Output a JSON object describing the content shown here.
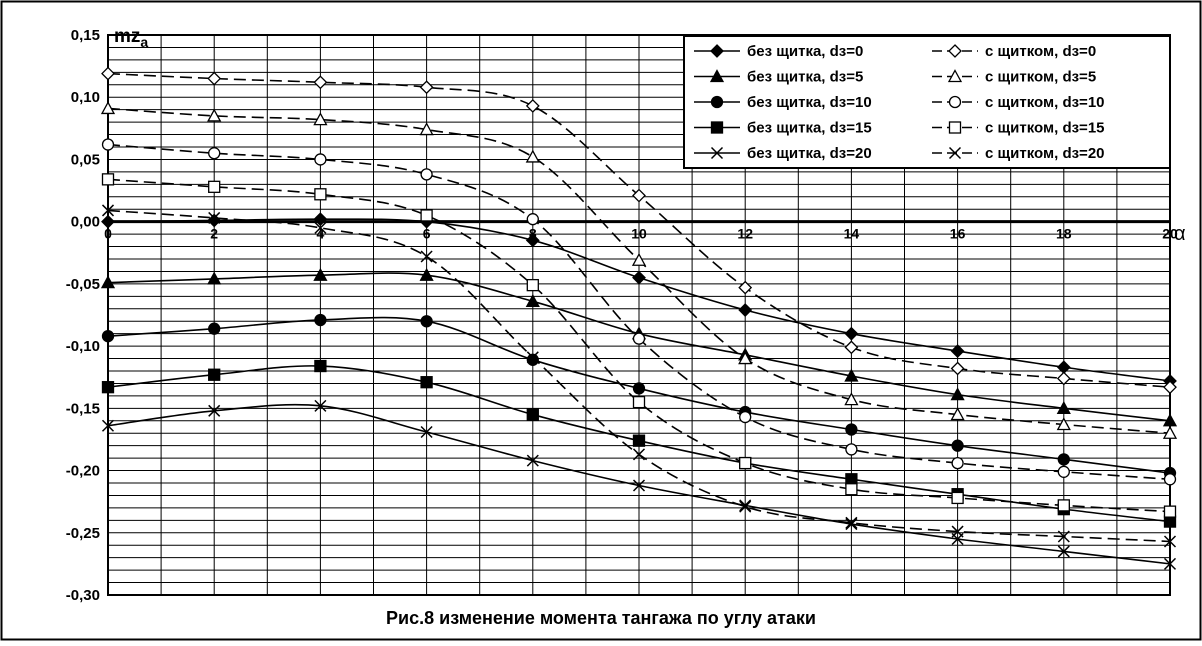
{
  "chart_data": {
    "type": "line",
    "title": "Рис.8 изменение момента тангажа по углу атаки",
    "xlabel": "α",
    "ylabel": "mz",
    "ylabel_sub": "a",
    "xlim": [
      0,
      20
    ],
    "ylim": [
      -0.3,
      0.15
    ],
    "x_ticks": [
      "0",
      "2",
      "4",
      "6",
      "8",
      "10",
      "12",
      "14",
      "16",
      "18",
      "20"
    ],
    "y_ticks": [
      "0,15",
      "0,10",
      "0,05",
      "0,00",
      "-0,05",
      "-0,10",
      "-0,15",
      "-0,20",
      "-0,25",
      "-0,30"
    ],
    "grid": true,
    "legend_position": "top-right",
    "x": [
      0,
      2,
      4,
      6,
      8,
      10,
      12,
      14,
      16,
      18,
      20
    ],
    "series": [
      {
        "name": "без щитка, dз=0",
        "marker": "diamond",
        "filled": true,
        "dashed": false,
        "values": [
          0.0,
          0.001,
          0.002,
          0.0,
          -0.015,
          -0.045,
          -0.071,
          -0.09,
          -0.104,
          -0.117,
          -0.128
        ]
      },
      {
        "name": "с щитком, dз=0",
        "marker": "diamond",
        "filled": false,
        "dashed": true,
        "values": [
          0.119,
          0.115,
          0.112,
          0.108,
          0.093,
          0.021,
          -0.053,
          -0.101,
          -0.118,
          -0.126,
          -0.133
        ]
      },
      {
        "name": "без щитка, dз=5",
        "marker": "triangle",
        "filled": true,
        "dashed": false,
        "values": [
          -0.049,
          -0.046,
          -0.043,
          -0.043,
          -0.064,
          -0.09,
          -0.107,
          -0.124,
          -0.139,
          -0.15,
          -0.16
        ]
      },
      {
        "name": "с щитком, dз=5",
        "marker": "triangle",
        "filled": false,
        "dashed": true,
        "values": [
          0.091,
          0.085,
          0.082,
          0.074,
          0.052,
          -0.031,
          -0.11,
          -0.143,
          -0.155,
          -0.163,
          -0.17
        ]
      },
      {
        "name": "без щитка, dз=10",
        "marker": "circle",
        "filled": true,
        "dashed": false,
        "values": [
          -0.092,
          -0.086,
          -0.079,
          -0.08,
          -0.111,
          -0.134,
          -0.153,
          -0.167,
          -0.18,
          -0.191,
          -0.202
        ]
      },
      {
        "name": "с щитком, dз=10",
        "marker": "circle",
        "filled": false,
        "dashed": true,
        "values": [
          0.062,
          0.055,
          0.05,
          0.038,
          0.002,
          -0.094,
          -0.157,
          -0.183,
          -0.194,
          -0.201,
          -0.207
        ]
      },
      {
        "name": "без щитка, dз=15",
        "marker": "square",
        "filled": true,
        "dashed": false,
        "values": [
          -0.133,
          -0.123,
          -0.116,
          -0.129,
          -0.155,
          -0.176,
          -0.194,
          -0.207,
          -0.219,
          -0.231,
          -0.241
        ]
      },
      {
        "name": "с щитком, dз=15",
        "marker": "square",
        "filled": false,
        "dashed": true,
        "values": [
          0.034,
          0.028,
          0.022,
          0.005,
          -0.051,
          -0.145,
          -0.194,
          -0.215,
          -0.222,
          -0.228,
          -0.233
        ]
      },
      {
        "name": "без щитка, dз=20",
        "marker": "x",
        "filled": true,
        "dashed": false,
        "values": [
          -0.164,
          -0.152,
          -0.148,
          -0.169,
          -0.192,
          -0.212,
          -0.228,
          -0.243,
          -0.255,
          -0.265,
          -0.275
        ]
      },
      {
        "name": "с щитком, dз=20",
        "marker": "x",
        "filled": false,
        "dashed": true,
        "values": [
          0.009,
          0.003,
          -0.005,
          -0.028,
          -0.109,
          -0.187,
          -0.229,
          -0.242,
          -0.249,
          -0.253,
          -0.257
        ]
      }
    ]
  }
}
